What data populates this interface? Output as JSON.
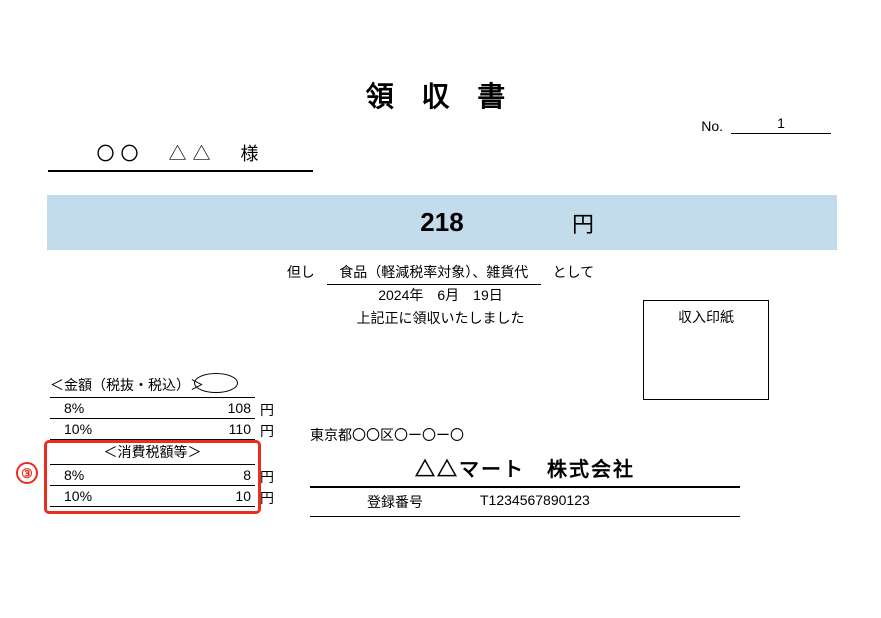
{
  "title": "領 収 書",
  "no_label": "No.",
  "no_value": "1",
  "recipient": "〇〇　△△　様",
  "amount": "218",
  "yen": "円",
  "desc_prefix": "但し",
  "desc_text": "食品（軽減税率対象）、雑貨代",
  "desc_suffix": "として",
  "date": "2024年　6月　19日",
  "receipt_note": "上記正に領収いたしました",
  "stamp_label": "収入印紙",
  "breakdown_header": "＜金額（税抜・税込）＞",
  "breakdown_rows": [
    {
      "rate": "8%",
      "amt": "108",
      "unit": "円"
    },
    {
      "rate": "10%",
      "amt": "110",
      "unit": "円"
    }
  ],
  "tax_header": "＜消費税額等＞",
  "tax_rows": [
    {
      "rate": "8%",
      "amt": "8",
      "unit": "円"
    },
    {
      "rate": "10%",
      "amt": "10",
      "unit": "円"
    }
  ],
  "annotation_num": "③",
  "issuer_address": "東京都〇〇区〇ー〇ー〇",
  "issuer_company": "△△マート　株式会社",
  "reg_label": "登録番号",
  "reg_number": "T1234567890123",
  "colors": {
    "band": "#c3dcec",
    "red": "#eb2d1f"
  }
}
